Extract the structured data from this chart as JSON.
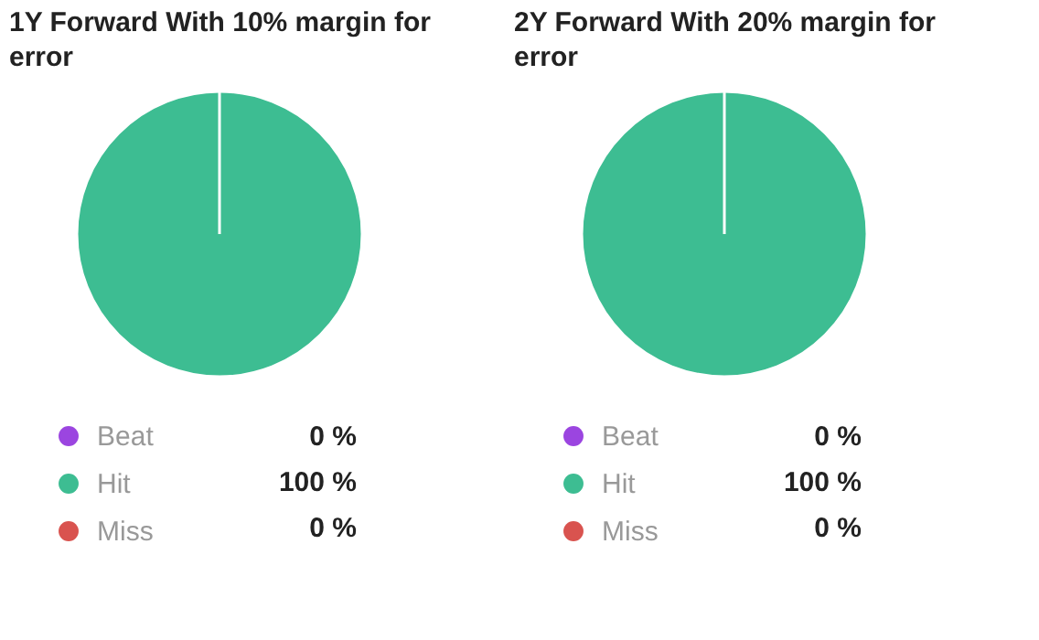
{
  "chart_data": [
    {
      "type": "pie",
      "title": "1Y Forward With 10% margin for error",
      "categories": [
        "Beat",
        "Hit",
        "Miss"
      ],
      "values": [
        0,
        100,
        0
      ],
      "colors": [
        "#9b45e0",
        "#3dbd92",
        "#d9534f"
      ],
      "value_labels": [
        "0 %",
        "100 %",
        "0 %"
      ],
      "legend": "bottom"
    },
    {
      "type": "pie",
      "title": "2Y Forward With 20% margin for error",
      "categories": [
        "Beat",
        "Hit",
        "Miss"
      ],
      "values": [
        0,
        100,
        0
      ],
      "colors": [
        "#9b45e0",
        "#3dbd92",
        "#d9534f"
      ],
      "value_labels": [
        "0 %",
        "100 %",
        "0 %"
      ],
      "legend": "bottom"
    }
  ]
}
